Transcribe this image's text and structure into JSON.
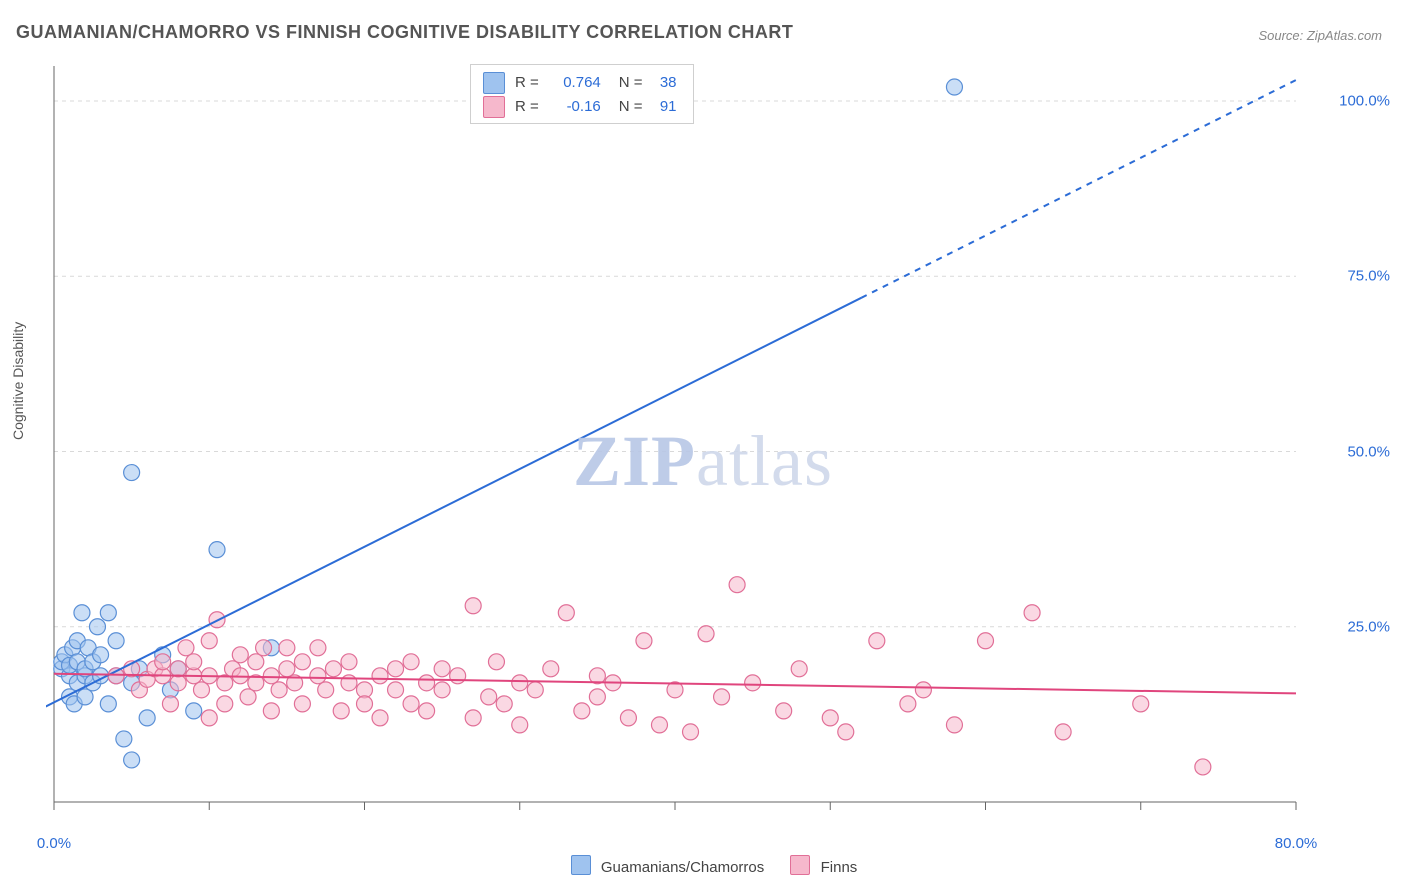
{
  "title": "GUAMANIAN/CHAMORRO VS FINNISH COGNITIVE DISABILITY CORRELATION CHART",
  "source": "Source: ZipAtlas.com",
  "y_axis_label": "Cognitive Disability",
  "watermark_zip": "ZIP",
  "watermark_atlas": "atlas",
  "chart": {
    "type": "scatter",
    "xlim": [
      0,
      80
    ],
    "ylim": [
      0,
      105
    ],
    "x_tick_step": 10,
    "x_tick_labels_shown": [
      {
        "v": 0,
        "label": "0.0%"
      },
      {
        "v": 80,
        "label": "80.0%"
      }
    ],
    "y_tick_step": 25,
    "y_tick_labels_shown": [
      {
        "v": 25,
        "label": "25.0%"
      },
      {
        "v": 50,
        "label": "50.0%"
      },
      {
        "v": 75,
        "label": "75.0%"
      },
      {
        "v": 100,
        "label": "100.0%"
      }
    ],
    "grid_color": "#d9d9d9",
    "axis_color": "#666666",
    "background_color": "#ffffff",
    "marker_radius": 8,
    "marker_stroke_width": 1.2,
    "line_width": 2,
    "series": [
      {
        "name": "Guamanians/Chamorros",
        "fill": "#9fc3ef",
        "stroke": "#5a8fd6",
        "fill_opacity": 0.55,
        "line_color": "#2c6cd6",
        "r": 0.764,
        "n": 38,
        "trend": {
          "x1": -2,
          "y1": 12,
          "x2": 80,
          "y2": 103,
          "solid_to_x": 52
        },
        "points": [
          [
            0.5,
            19
          ],
          [
            0.5,
            20
          ],
          [
            0.7,
            21
          ],
          [
            1,
            15
          ],
          [
            1,
            18
          ],
          [
            1,
            19.5
          ],
          [
            1.2,
            22
          ],
          [
            1.3,
            14
          ],
          [
            1.5,
            17
          ],
          [
            1.5,
            20
          ],
          [
            1.5,
            23
          ],
          [
            1.8,
            27
          ],
          [
            2,
            15
          ],
          [
            2,
            18
          ],
          [
            2,
            19
          ],
          [
            2.2,
            22
          ],
          [
            2.5,
            17
          ],
          [
            2.5,
            20
          ],
          [
            2.8,
            25
          ],
          [
            3,
            18
          ],
          [
            3,
            21
          ],
          [
            3.5,
            14
          ],
          [
            3.5,
            27
          ],
          [
            4,
            18
          ],
          [
            4,
            23
          ],
          [
            4.5,
            9
          ],
          [
            5,
            6
          ],
          [
            5,
            17
          ],
          [
            5,
            47
          ],
          [
            5.5,
            19
          ],
          [
            6,
            12
          ],
          [
            7,
            21
          ],
          [
            7.5,
            16
          ],
          [
            8,
            19
          ],
          [
            9,
            13
          ],
          [
            10.5,
            36
          ],
          [
            14,
            22
          ],
          [
            58,
            102
          ]
        ]
      },
      {
        "name": "Finns",
        "fill": "#f6b8cc",
        "stroke": "#e16f97",
        "fill_opacity": 0.55,
        "line_color": "#e0457d",
        "r": -0.16,
        "n": 91,
        "trend": {
          "x1": 0,
          "y1": 18.3,
          "x2": 80,
          "y2": 15.5,
          "solid_to_x": 80
        },
        "points": [
          [
            4,
            18
          ],
          [
            5,
            19
          ],
          [
            5.5,
            16
          ],
          [
            6,
            17.5
          ],
          [
            6.5,
            19
          ],
          [
            7,
            18
          ],
          [
            7,
            20
          ],
          [
            7.5,
            14
          ],
          [
            8,
            17
          ],
          [
            8,
            19
          ],
          [
            8.5,
            22
          ],
          [
            9,
            18
          ],
          [
            9,
            20
          ],
          [
            9.5,
            16
          ],
          [
            10,
            12
          ],
          [
            10,
            18
          ],
          [
            10,
            23
          ],
          [
            10.5,
            26
          ],
          [
            11,
            17
          ],
          [
            11,
            14
          ],
          [
            11.5,
            19
          ],
          [
            12,
            21
          ],
          [
            12,
            18
          ],
          [
            12.5,
            15
          ],
          [
            13,
            20
          ],
          [
            13,
            17
          ],
          [
            13.5,
            22
          ],
          [
            14,
            13
          ],
          [
            14,
            18
          ],
          [
            14.5,
            16
          ],
          [
            15,
            19
          ],
          [
            15,
            22
          ],
          [
            15.5,
            17
          ],
          [
            16,
            14
          ],
          [
            16,
            20
          ],
          [
            17,
            18
          ],
          [
            17,
            22
          ],
          [
            17.5,
            16
          ],
          [
            18,
            19
          ],
          [
            18.5,
            13
          ],
          [
            19,
            17
          ],
          [
            19,
            20
          ],
          [
            20,
            16
          ],
          [
            20,
            14
          ],
          [
            21,
            18
          ],
          [
            21,
            12
          ],
          [
            22,
            19
          ],
          [
            22,
            16
          ],
          [
            23,
            14
          ],
          [
            23,
            20
          ],
          [
            24,
            17
          ],
          [
            24,
            13
          ],
          [
            25,
            16
          ],
          [
            25,
            19
          ],
          [
            26,
            18
          ],
          [
            27,
            12
          ],
          [
            27,
            28
          ],
          [
            28,
            15
          ],
          [
            28.5,
            20
          ],
          [
            29,
            14
          ],
          [
            30,
            17
          ],
          [
            30,
            11
          ],
          [
            31,
            16
          ],
          [
            32,
            19
          ],
          [
            33,
            27
          ],
          [
            34,
            13
          ],
          [
            35,
            15
          ],
          [
            35,
            18
          ],
          [
            36,
            17
          ],
          [
            37,
            12
          ],
          [
            38,
            23
          ],
          [
            39,
            11
          ],
          [
            40,
            16
          ],
          [
            41,
            10
          ],
          [
            42,
            24
          ],
          [
            43,
            15
          ],
          [
            44,
            31
          ],
          [
            45,
            17
          ],
          [
            47,
            13
          ],
          [
            48,
            19
          ],
          [
            50,
            12
          ],
          [
            51,
            10
          ],
          [
            53,
            23
          ],
          [
            55,
            14
          ],
          [
            56,
            16
          ],
          [
            58,
            11
          ],
          [
            60,
            23
          ],
          [
            63,
            27
          ],
          [
            65,
            10
          ],
          [
            70,
            14
          ],
          [
            74,
            5
          ]
        ]
      }
    ]
  },
  "legend_top": {
    "r_label": "R =",
    "n_label": "N ="
  },
  "legend_bottom": {
    "series1_label": "Guamanians/Chamorros",
    "series2_label": "Finns"
  }
}
